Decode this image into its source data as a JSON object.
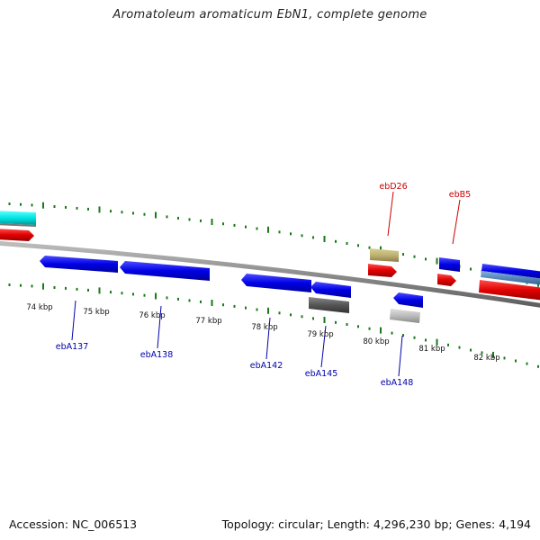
{
  "title": "Aromatoleum aromaticum EbN1, complete genome",
  "footer": {
    "accession": "Accession: NC_006513",
    "summary": "Topology: circular; Length: 4,296,230 bp; Genes: 4,194"
  },
  "colors": {
    "forward_cds": "#0000e6",
    "reverse_cds": "#0000e6",
    "rna": "#e00000",
    "other_cyan": "#00e5e5",
    "other_olive": "#bfb272",
    "other_gray": "#555555",
    "other_lightgray": "#bbbbbb",
    "other_steel": "#5588bb",
    "tick": "#1a7a1a",
    "backbone": "#8c8c8c"
  },
  "tick_labels": [
    "74 kbp",
    "75 kbp",
    "76 kbp",
    "77 kbp",
    "78 kbp",
    "79 kbp",
    "80 kbp",
    "81 kbp",
    "82 kbp"
  ],
  "gene_labels": {
    "ebA137": "ebA137",
    "ebA138": "ebA138",
    "ebA142": "ebA142",
    "ebA145": "ebA145",
    "ebA148": "ebA148",
    "ebD26": "ebD26",
    "ebB5": "ebB5"
  }
}
